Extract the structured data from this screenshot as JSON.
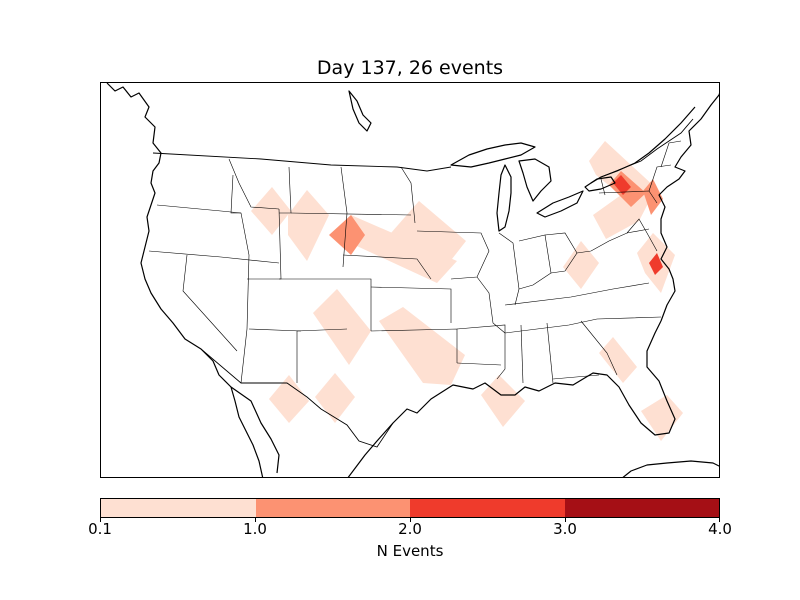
{
  "title": "Day 137, 26 events",
  "colorbar": {
    "label": "N Events",
    "ticks": [
      "0.1",
      "1.0",
      "2.0",
      "3.0",
      "4.0"
    ],
    "colors": [
      "#fee0d2",
      "#fc9272",
      "#ef3b2c",
      "#a50f15"
    ]
  },
  "map": {
    "region": "contiguous-united-states",
    "projection": "lambert-conformal",
    "boundaries": [
      "coastlines",
      "country-borders",
      "state-borders"
    ],
    "event_areas": [
      {
        "area": "montana-west",
        "level": "0.1-1.0"
      },
      {
        "area": "montana-central",
        "level": "0.1-1.0"
      },
      {
        "area": "south-dakota-west",
        "level": "1.0-2.0"
      },
      {
        "area": "south-dakota-nebraska",
        "level": "0.1-1.0"
      },
      {
        "area": "iowa-minnesota",
        "level": "0.1-1.0"
      },
      {
        "area": "colorado-southeast",
        "level": "0.1-1.0"
      },
      {
        "area": "oklahoma-kansas",
        "level": "0.1-1.0"
      },
      {
        "area": "new-mexico",
        "level": "0.1-1.0"
      },
      {
        "area": "west-texas",
        "level": "0.1-1.0"
      },
      {
        "area": "louisiana",
        "level": "0.1-1.0"
      },
      {
        "area": "west-virginia",
        "level": "0.1-1.0"
      },
      {
        "area": "new-york-pennsylvania",
        "level": "2.0-3.0"
      },
      {
        "area": "new-jersey",
        "level": "1.0-2.0"
      },
      {
        "area": "virginia-coast",
        "level": "2.0-3.0"
      },
      {
        "area": "florida-north",
        "level": "0.1-1.0"
      },
      {
        "area": "florida-south",
        "level": "0.1-1.0"
      }
    ]
  }
}
